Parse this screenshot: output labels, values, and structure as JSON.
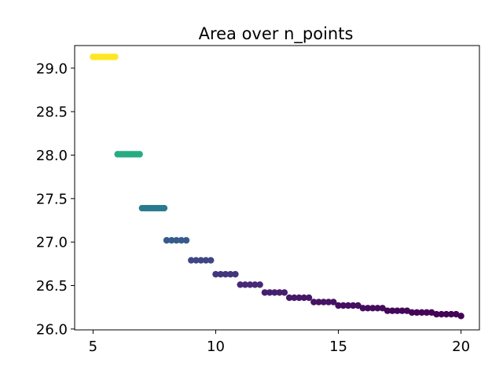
{
  "chart_data": {
    "type": "scatter",
    "title": "Area over n_points",
    "xlabel": "",
    "ylabel": "",
    "xlim": [
      4.25,
      20.75
    ],
    "ylim": [
      25.99,
      29.26
    ],
    "grid": false,
    "x_ticks": [
      5,
      10,
      15,
      20
    ],
    "x_tick_labels": [
      "5",
      "10",
      "15",
      "20"
    ],
    "y_ticks": [
      26.0,
      26.5,
      27.0,
      27.5,
      28.0,
      28.5,
      29.0
    ],
    "y_tick_labels": [
      "26.0",
      "26.5",
      "27.0",
      "27.5",
      "28.0",
      "28.5",
      "29.0"
    ],
    "colormap": "viridis",
    "color_range": [
      26.15,
      29.13
    ],
    "x": [
      5.0,
      5.1,
      5.2,
      5.3,
      5.4,
      5.5,
      5.6,
      5.7,
      5.8,
      5.9,
      6.0,
      6.1,
      6.2,
      6.3,
      6.4,
      6.5,
      6.6,
      6.7,
      6.8,
      6.9,
      7.0,
      7.1,
      7.2,
      7.3,
      7.4,
      7.5,
      7.6,
      7.7,
      7.8,
      7.9,
      8.0,
      8.2,
      8.4,
      8.6,
      8.8,
      9.0,
      9.2,
      9.4,
      9.6,
      9.8,
      10.0,
      10.2,
      10.4,
      10.6,
      10.8,
      11.0,
      11.2,
      11.4,
      11.6,
      11.8,
      12.0,
      12.2,
      12.4,
      12.6,
      12.8,
      13.0,
      13.2,
      13.4,
      13.6,
      13.8,
      14.0,
      14.2,
      14.4,
      14.6,
      14.8,
      15.0,
      15.2,
      15.4,
      15.6,
      15.8,
      16.0,
      16.2,
      16.4,
      16.6,
      16.8,
      17.0,
      17.2,
      17.4,
      17.6,
      17.8,
      18.0,
      18.2,
      18.4,
      18.6,
      18.8,
      19.0,
      19.2,
      19.4,
      19.6,
      19.8,
      20.0
    ],
    "y": [
      29.13,
      29.13,
      29.13,
      29.13,
      29.13,
      29.13,
      29.13,
      29.13,
      29.13,
      29.13,
      28.01,
      28.01,
      28.01,
      28.01,
      28.01,
      28.01,
      28.01,
      28.01,
      28.01,
      28.01,
      27.39,
      27.39,
      27.39,
      27.39,
      27.39,
      27.39,
      27.39,
      27.39,
      27.39,
      27.39,
      27.02,
      27.02,
      27.02,
      27.02,
      27.02,
      26.79,
      26.79,
      26.79,
      26.79,
      26.79,
      26.63,
      26.63,
      26.63,
      26.63,
      26.63,
      26.51,
      26.51,
      26.51,
      26.51,
      26.51,
      26.42,
      26.42,
      26.42,
      26.42,
      26.42,
      26.36,
      26.36,
      26.36,
      26.36,
      26.36,
      26.31,
      26.31,
      26.31,
      26.31,
      26.31,
      26.27,
      26.27,
      26.27,
      26.27,
      26.27,
      26.24,
      26.24,
      26.24,
      26.24,
      26.24,
      26.21,
      26.21,
      26.21,
      26.21,
      26.21,
      26.19,
      26.19,
      26.19,
      26.19,
      26.19,
      26.17,
      26.17,
      26.17,
      26.17,
      26.17,
      26.15
    ]
  }
}
